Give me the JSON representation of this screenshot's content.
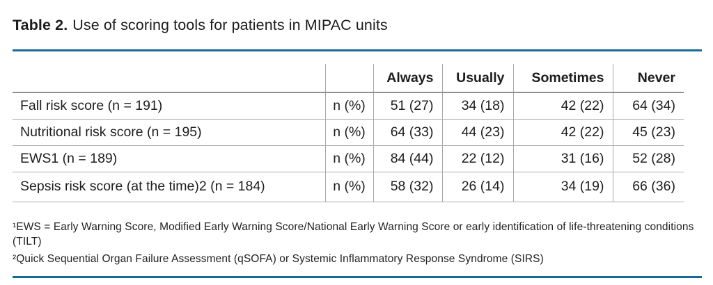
{
  "title": {
    "label": "Table 2.",
    "text": "Use of scoring tools for patients in MIPAC units"
  },
  "table": {
    "columns": {
      "always": "Always",
      "usually": "Usually",
      "sometimes": "Sometimes",
      "never": "Never"
    },
    "rows": [
      {
        "label": "Fall risk score (n = 191)",
        "measure": "n (%)",
        "always": "51 (27)",
        "usually": "34 (18)",
        "sometimes": "42 (22)",
        "never": "64 (34)"
      },
      {
        "label": "Nutritional risk score (n = 195)",
        "measure": "n (%)",
        "always": "64 (33)",
        "usually": "44 (23)",
        "sometimes": "42 (22)",
        "never": "45 (23)"
      },
      {
        "label": "EWS1 (n = 189)",
        "measure": "n (%)",
        "always": "84 (44)",
        "usually": "22 (12)",
        "sometimes": "31 (16)",
        "never": "52 (28)"
      },
      {
        "label": "Sepsis risk score (at the time)2 (n = 184)",
        "measure": "n (%)",
        "always": "58 (32)",
        "usually": "26 (14)",
        "sometimes": "34 (19)",
        "never": "66 (36)"
      }
    ]
  },
  "footnotes": {
    "note1": "¹EWS = Early Warning Score, Modified Early Warning Score/National Early Warning Score or early identification of life-threatening conditions (TILT)",
    "note2": "²Quick Sequential Organ Failure Assessment (qSOFA) or Systemic Inflammatory Response Syndrome (SIRS)"
  },
  "colors": {
    "accent_rule": "#176a94",
    "grid_line": "#a9a9a9",
    "header_line": "#8f8f8f",
    "text": "#1d1d1f"
  }
}
